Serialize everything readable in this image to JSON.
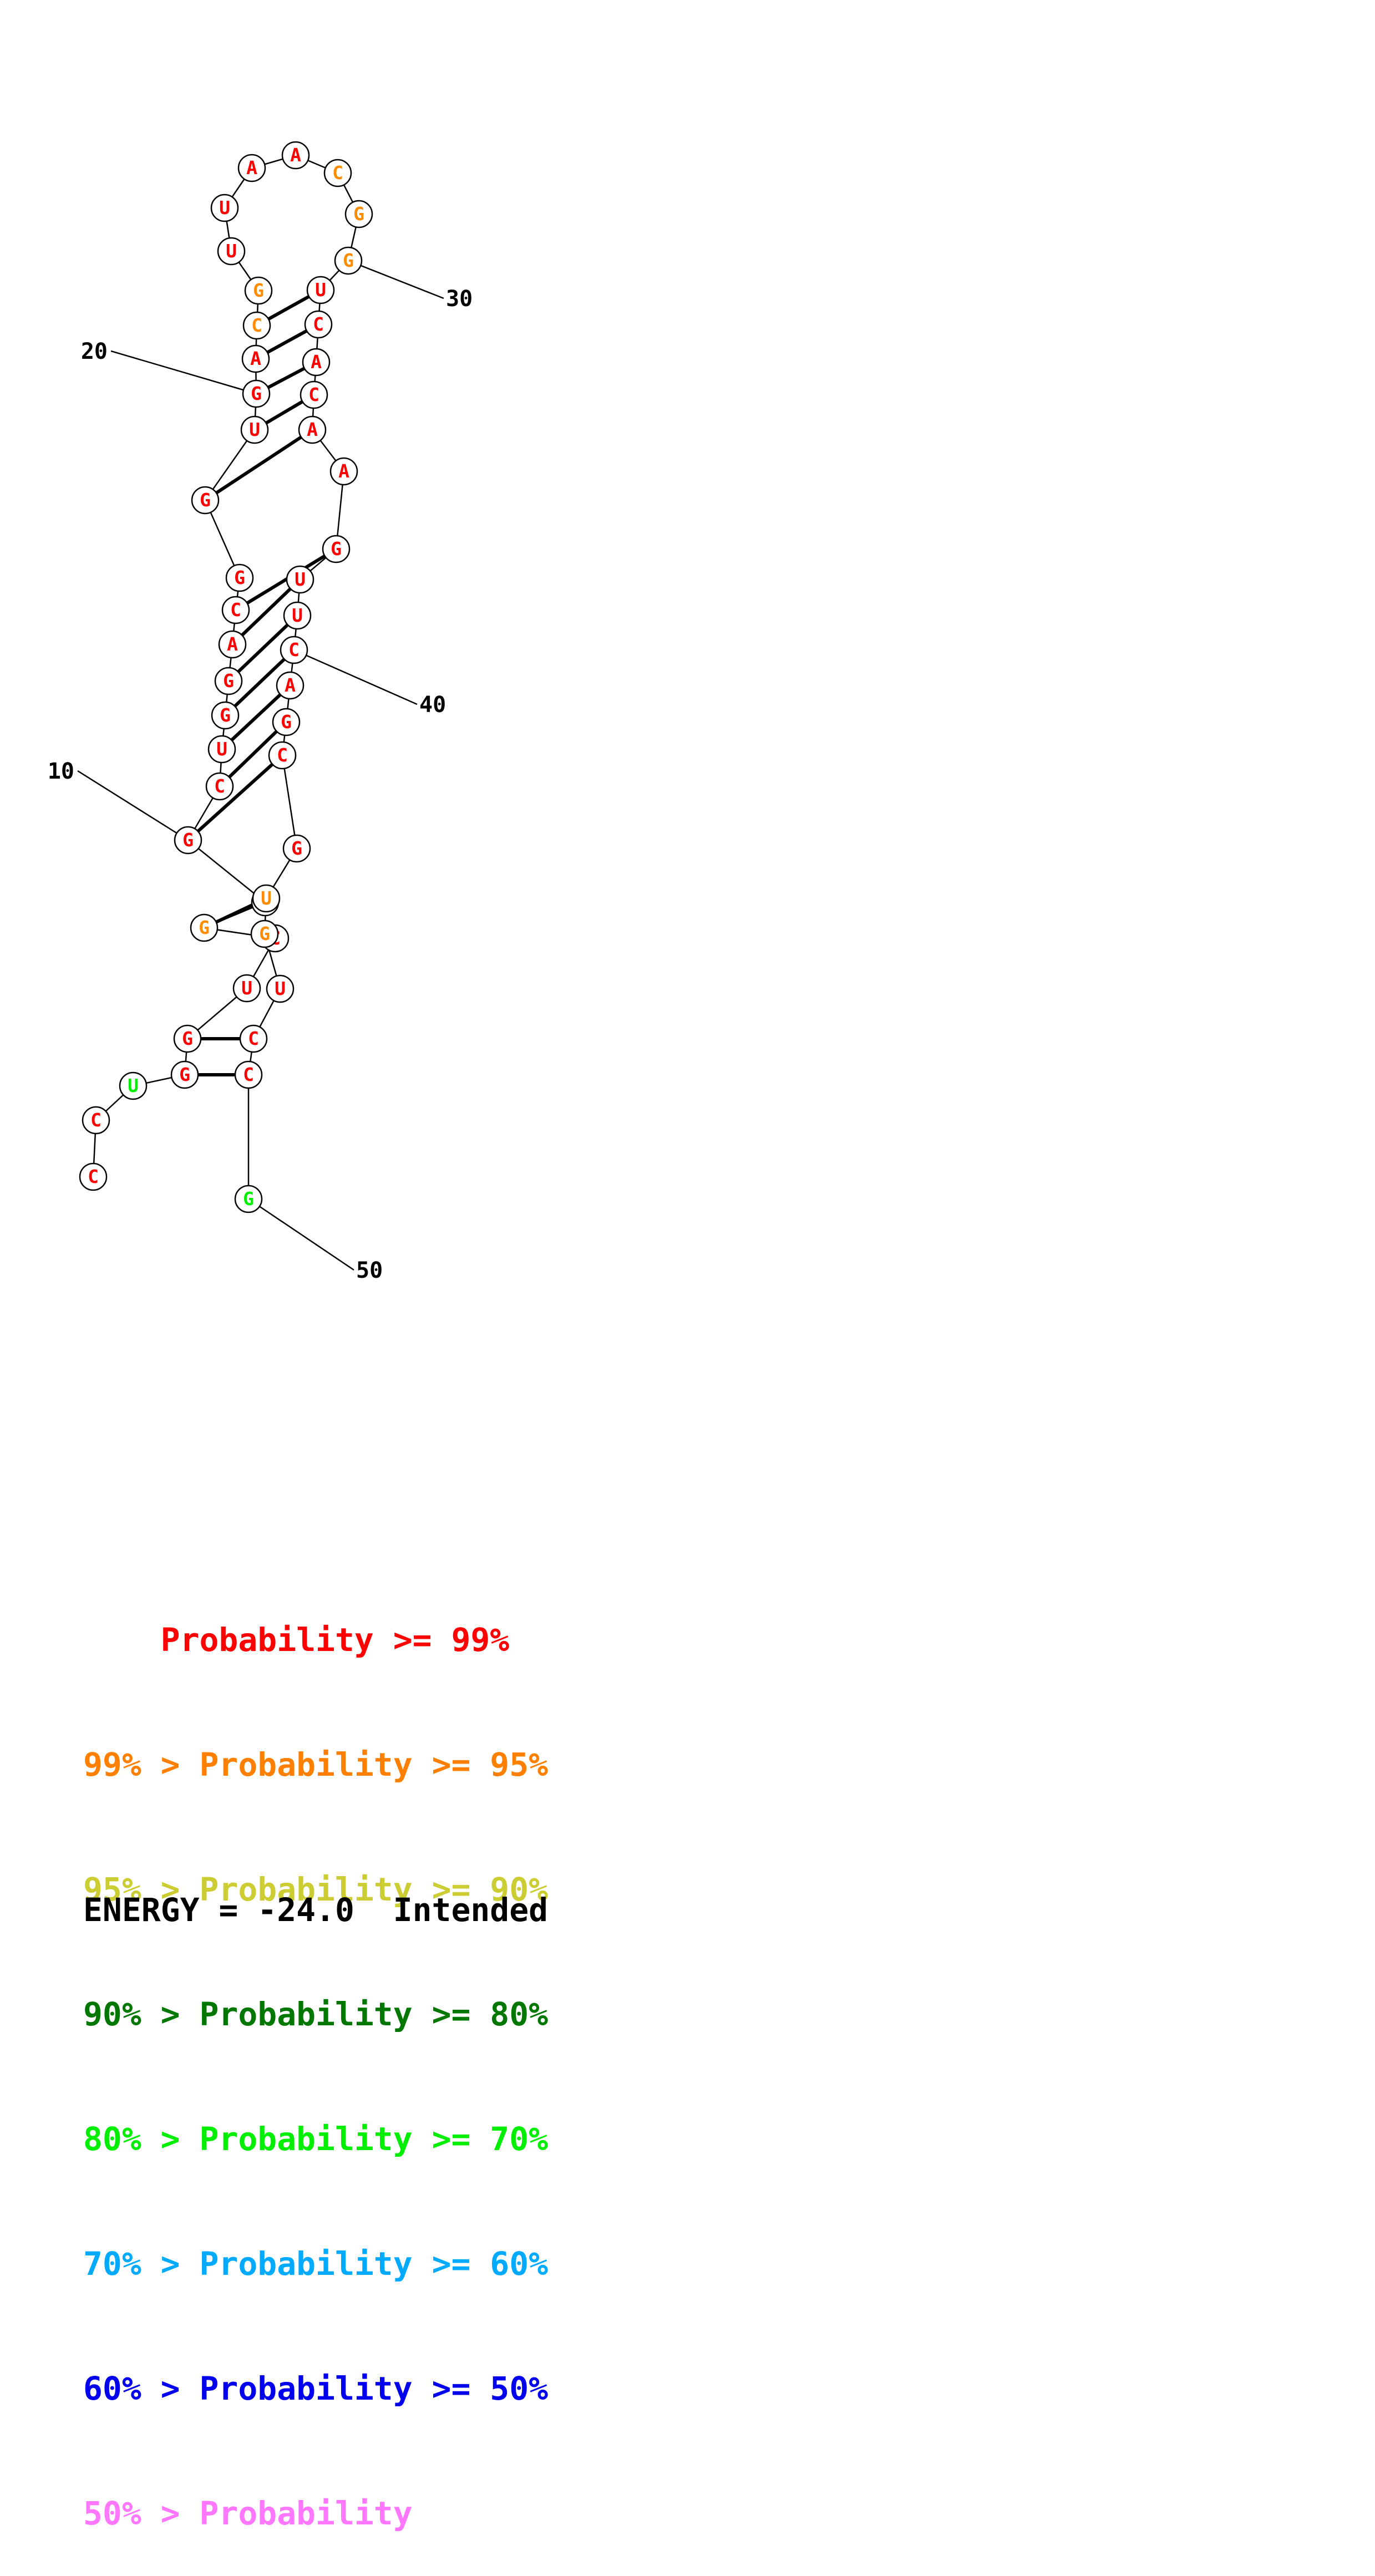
{
  "structure": {
    "sequence": [
      "C",
      "C",
      "U",
      "G",
      "G",
      "U",
      "C",
      "G",
      "A",
      "G",
      "C",
      "U",
      "G",
      "G",
      "A",
      "C",
      "G",
      "G",
      "U",
      "G",
      "A",
      "C",
      "G",
      "U",
      "U",
      "A",
      "A",
      "C",
      "G",
      "G",
      "U",
      "C",
      "A",
      "C",
      "A",
      "A",
      "G",
      "U",
      "U",
      "C",
      "A",
      "G",
      "C",
      "G",
      "U",
      "G",
      "U",
      "C",
      "C",
      "G"
    ],
    "colors": [
      "#ff0000",
      "#ff0000",
      "#00ee00",
      "#ff0000",
      "#ff0000",
      "#ff0000",
      "#ff0000",
      "#ff8c00",
      "#ff0000",
      "#ff0000",
      "#ff0000",
      "#ff0000",
      "#ff0000",
      "#ff0000",
      "#ff0000",
      "#ff0000",
      "#ff0000",
      "#ff0000",
      "#ff0000",
      "#ff0000",
      "#ff0000",
      "#ff8c00",
      "#ff8c00",
      "#ff0000",
      "#ff0000",
      "#ff0000",
      "#ff0000",
      "#ff8c00",
      "#ff8c00",
      "#ff8c00",
      "#ff0000",
      "#ff0000",
      "#ff0000",
      "#ff0000",
      "#ff0000",
      "#ff0000",
      "#ff0000",
      "#ff0000",
      "#ff0000",
      "#ff0000",
      "#ff0000",
      "#ff0000",
      "#ff0000",
      "#ff0000",
      "#ff8c00",
      "#ff8c00",
      "#ff0000",
      "#ff0000",
      "#ff0000",
      "#00ee00"
    ],
    "pairs": [
      [
        4,
        49
      ],
      [
        5,
        48
      ],
      [
        7,
        46
      ],
      [
        8,
        45
      ],
      [
        10,
        43
      ],
      [
        11,
        42
      ],
      [
        12,
        41
      ],
      [
        13,
        40
      ],
      [
        14,
        39
      ],
      [
        15,
        38
      ],
      [
        16,
        37
      ],
      [
        18,
        35
      ],
      [
        19,
        34
      ],
      [
        20,
        33
      ],
      [
        21,
        32
      ],
      [
        22,
        31
      ]
    ],
    "index_labels": [
      {
        "number": "10",
        "nucleotide": 10
      },
      {
        "number": "20",
        "nucleotide": 20
      },
      {
        "number": "30",
        "nucleotide": 30
      },
      {
        "number": "40",
        "nucleotide": 40
      },
      {
        "number": "50",
        "nucleotide": 50
      }
    ]
  },
  "legend": {
    "rows": [
      {
        "prefix": "    ",
        "text": "    Probability >= 99%",
        "color": "#ff0000"
      },
      {
        "prefix": "",
        "text": "99% > Probability >= 95%",
        "color": "#ff8000"
      },
      {
        "prefix": "",
        "text": "95% > Probability >= 90%",
        "color": "#cccc33"
      },
      {
        "prefix": "",
        "text": "90% > Probability >= 80%",
        "color": "#007700"
      },
      {
        "prefix": "",
        "text": "80% > Probability >= 70%",
        "color": "#00ee00"
      },
      {
        "prefix": "",
        "text": "70% > Probability >= 60%",
        "color": "#00aaff"
      },
      {
        "prefix": "",
        "text": "60% > Probability >= 50%",
        "color": "#0000ee"
      },
      {
        "prefix": "",
        "text": "50% > Probability",
        "color": "#ff77ff"
      }
    ],
    "energy": "ENERGY = -24.0  Intended"
  }
}
